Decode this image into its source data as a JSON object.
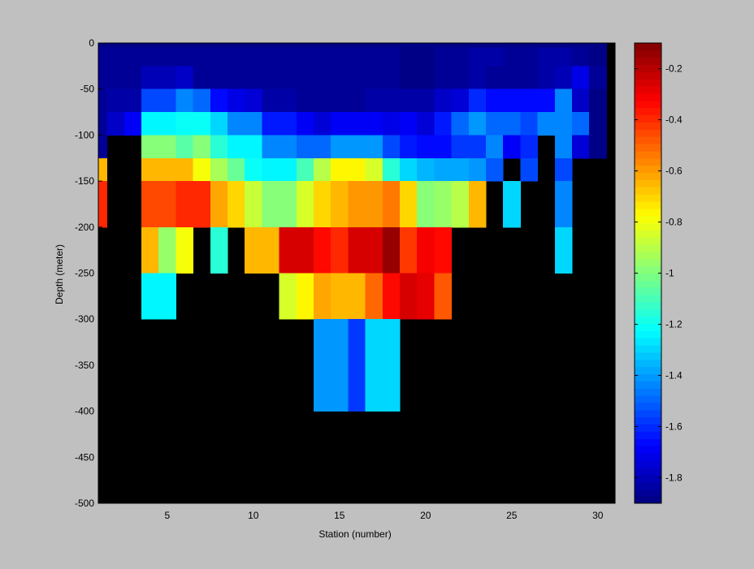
{
  "chart_data": {
    "type": "heatmap",
    "title": "",
    "xlabel": "Station (number)",
    "ylabel": "Depth (meter)",
    "xlim": [
      1,
      31
    ],
    "ylim": [
      -500,
      0
    ],
    "x_ticks": [
      5,
      10,
      15,
      20,
      25,
      30
    ],
    "y_ticks": [
      0,
      -50,
      -100,
      -150,
      -200,
      -250,
      -300,
      -350,
      -400,
      -450,
      -500
    ],
    "colorbar": {
      "range": [
        -1.9,
        -0.1
      ],
      "ticks": [
        -0.2,
        -0.4,
        -0.6,
        -0.8,
        -1,
        -1.2,
        -1.4,
        -1.6,
        -1.8
      ],
      "colormap": "jet"
    },
    "background_color": "#000000",
    "layers": [
      {
        "name": "0",
        "top": 0,
        "bottom": -5,
        "values": [
          -1.9,
          -1.9,
          -1.9,
          -1.9,
          -1.9,
          -1.9,
          -1.9,
          -1.9,
          -1.9,
          -1.9,
          -1.9,
          -1.9,
          -1.9,
          -1.9,
          -1.9,
          -1.9,
          -1.9,
          -1.9,
          -1.9,
          -1.9,
          -1.9,
          -1.9,
          -1.9,
          -1.9,
          -1.9,
          -1.9,
          -1.9,
          -1.9,
          -1.9,
          -1.9
        ]
      },
      {
        "name": "-25",
        "top": -5,
        "bottom": -25,
        "values": [
          -1.85,
          -1.85,
          -1.85,
          -1.85,
          -1.85,
          -1.85,
          -1.85,
          -1.85,
          -1.85,
          -1.85,
          -1.85,
          -1.85,
          -1.85,
          -1.85,
          -1.85,
          -1.85,
          -1.85,
          -1.85,
          -1.88,
          -1.88,
          -1.85,
          -1.85,
          -1.83,
          -1.83,
          -1.85,
          -1.85,
          -1.83,
          -1.83,
          -1.85,
          -1.88
        ]
      },
      {
        "name": "-50",
        "top": -25,
        "bottom": -50,
        "values": [
          -1.85,
          -1.85,
          -1.85,
          -1.8,
          -1.8,
          -1.78,
          -1.85,
          -1.85,
          -1.85,
          -1.85,
          -1.85,
          -1.85,
          -1.85,
          -1.85,
          -1.85,
          -1.85,
          -1.85,
          -1.85,
          -1.88,
          -1.88,
          -1.85,
          -1.85,
          -1.83,
          -1.85,
          -1.85,
          -1.85,
          -1.83,
          -1.8,
          -1.72,
          -1.85
        ]
      },
      {
        "name": "-75",
        "top": -50,
        "bottom": -75,
        "values": [
          -1.85,
          -1.82,
          -1.82,
          -1.55,
          -1.55,
          -1.45,
          -1.5,
          -1.65,
          -1.72,
          -1.75,
          -1.82,
          -1.82,
          -1.85,
          -1.85,
          -1.85,
          -1.85,
          -1.82,
          -1.82,
          -1.82,
          -1.82,
          -1.78,
          -1.75,
          -1.6,
          -1.65,
          -1.65,
          -1.65,
          -1.65,
          -1.45,
          -1.78,
          -1.88
        ]
      },
      {
        "name": "-100",
        "top": -75,
        "bottom": -100,
        "values": [
          -1.85,
          -1.78,
          -1.7,
          -1.25,
          -1.25,
          -1.2,
          -1.22,
          -1.3,
          -1.45,
          -1.45,
          -1.62,
          -1.62,
          -1.68,
          -1.75,
          -1.68,
          -1.68,
          -1.68,
          -1.72,
          -1.68,
          -1.75,
          -1.62,
          -1.5,
          -1.42,
          -1.5,
          -1.5,
          -1.55,
          -1.45,
          -1.45,
          -1.5,
          -1.88
        ]
      },
      {
        "name": "-125",
        "top": -100,
        "bottom": -125,
        "values": [
          -1.85,
          null,
          null,
          -1,
          -1,
          -1.08,
          -1,
          -1.15,
          -1.25,
          -1.25,
          -1.45,
          -1.45,
          -1.5,
          -1.5,
          -1.4,
          -1.4,
          -1.4,
          -1.55,
          -1.62,
          -1.65,
          -1.65,
          -1.58,
          -1.58,
          -1.45,
          -1.68,
          -1.6,
          null,
          -1.45,
          -1.75,
          -1.88
        ]
      },
      {
        "name": "-150",
        "top": -125,
        "bottom": -150,
        "values": [
          -0.65,
          null,
          null,
          -0.65,
          -0.65,
          -0.65,
          -0.78,
          -0.92,
          -1.05,
          -1.2,
          -1.25,
          -1.25,
          -1.1,
          -0.9,
          -0.75,
          -0.75,
          -0.85,
          -1.15,
          -1.3,
          -1.35,
          -1.38,
          -1.38,
          -1.4,
          -1.52,
          null,
          -1.55,
          null,
          -1.55,
          null,
          null
        ]
      },
      {
        "name": "-175",
        "top": -150,
        "bottom": -200,
        "values": [
          -0.4,
          null,
          null,
          -0.45,
          -0.45,
          -0.4,
          -0.4,
          -0.62,
          -0.7,
          -0.88,
          -1,
          -1,
          -0.85,
          -0.7,
          -0.65,
          -0.6,
          -0.58,
          -0.55,
          -0.7,
          -1,
          -0.95,
          -0.9,
          -0.65,
          null,
          -1.3,
          null,
          null,
          -1.45,
          null,
          null
        ]
      },
      {
        "name": "-225",
        "top": -200,
        "bottom": -250,
        "values": [
          null,
          null,
          null,
          -0.65,
          -0.95,
          -0.8,
          null,
          -1.15,
          null,
          -0.65,
          -0.65,
          -0.25,
          -0.25,
          -0.35,
          -0.4,
          -0.25,
          -0.25,
          -0.15,
          -0.42,
          -0.32,
          -0.35,
          null,
          null,
          null,
          null,
          null,
          null,
          -1.3,
          null,
          null
        ]
      },
      {
        "name": "-275",
        "top": -250,
        "bottom": -300,
        "values": [
          null,
          null,
          null,
          -1.25,
          -1.25,
          null,
          null,
          null,
          null,
          null,
          null,
          -0.85,
          -0.75,
          -0.62,
          -0.65,
          -0.65,
          -0.52,
          -0.35,
          -0.25,
          -0.28,
          -0.48,
          null,
          null,
          null,
          null,
          null,
          null,
          null,
          null,
          null
        ]
      },
      {
        "name": "-350",
        "top": -300,
        "bottom": -400,
        "values": [
          null,
          null,
          null,
          null,
          null,
          null,
          null,
          null,
          null,
          null,
          null,
          null,
          null,
          -1.4,
          -1.4,
          -1.58,
          -1.3,
          -1.3,
          null,
          null,
          null,
          null,
          null,
          null,
          null,
          null,
          null,
          null,
          null,
          null
        ]
      }
    ]
  }
}
